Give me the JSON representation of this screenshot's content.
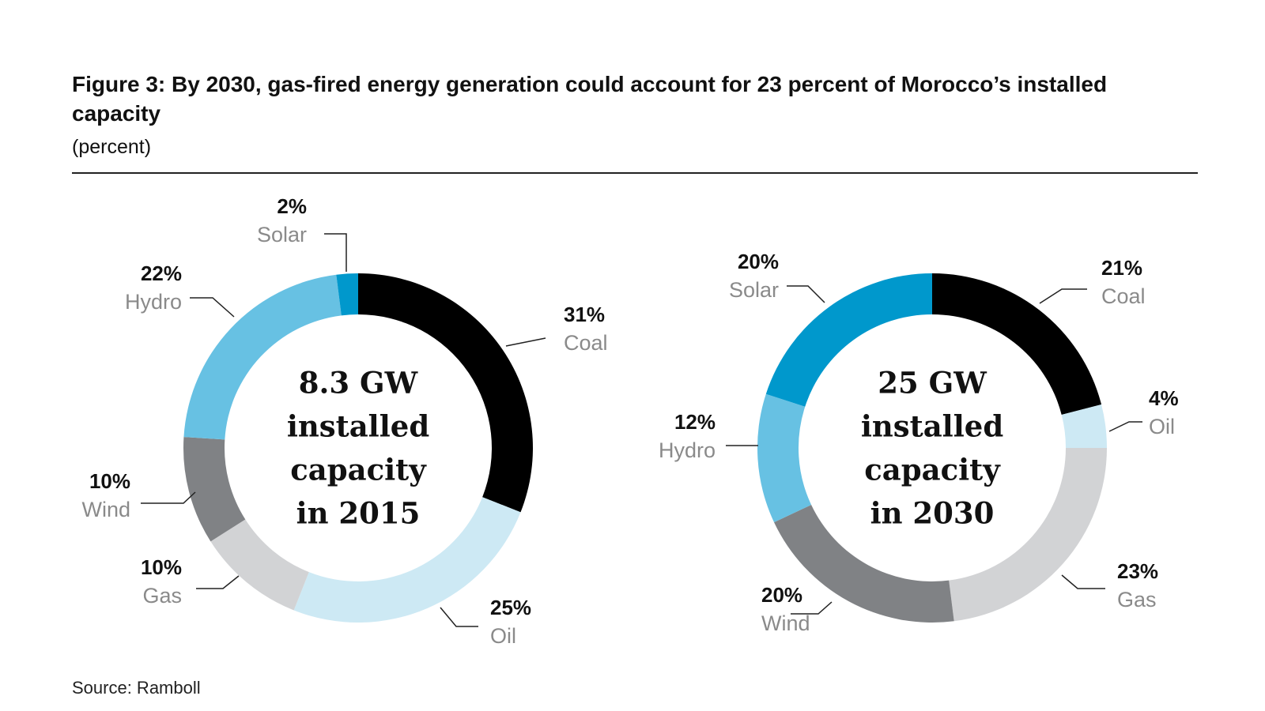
{
  "title": "Figure 3: By 2030, gas-fired energy generation could account for 23 percent of Morocco’s installed capacity",
  "subtitle": "(percent)",
  "source": "Source: Ramboll",
  "colors": {
    "Coal": "#000000",
    "Oil": "#cde9f4",
    "Gas": "#d2d3d5",
    "Wind": "#808285",
    "Hydro": "#67c1e3",
    "Solar": "#0098cc"
  },
  "chart_data": [
    {
      "type": "pie",
      "subtype": "donut",
      "center_label": [
        "8.3 GW",
        "installed",
        "capacity",
        "in 2015"
      ],
      "categories": [
        "Coal",
        "Oil",
        "Gas",
        "Wind",
        "Hydro",
        "Solar"
      ],
      "values": [
        31,
        25,
        10,
        10,
        22,
        2
      ],
      "value_labels": [
        "31%",
        "25%",
        "10%",
        "10%",
        "22%",
        "2%"
      ],
      "unit": "percent"
    },
    {
      "type": "pie",
      "subtype": "donut",
      "center_label": [
        "25 GW",
        "installed",
        "capacity",
        "in 2030"
      ],
      "categories": [
        "Coal",
        "Oil",
        "Gas",
        "Wind",
        "Hydro",
        "Solar"
      ],
      "values": [
        21,
        4,
        23,
        20,
        12,
        20
      ],
      "value_labels": [
        "21%",
        "4%",
        "23%",
        "20%",
        "12%",
        "20%"
      ],
      "unit": "percent"
    }
  ]
}
